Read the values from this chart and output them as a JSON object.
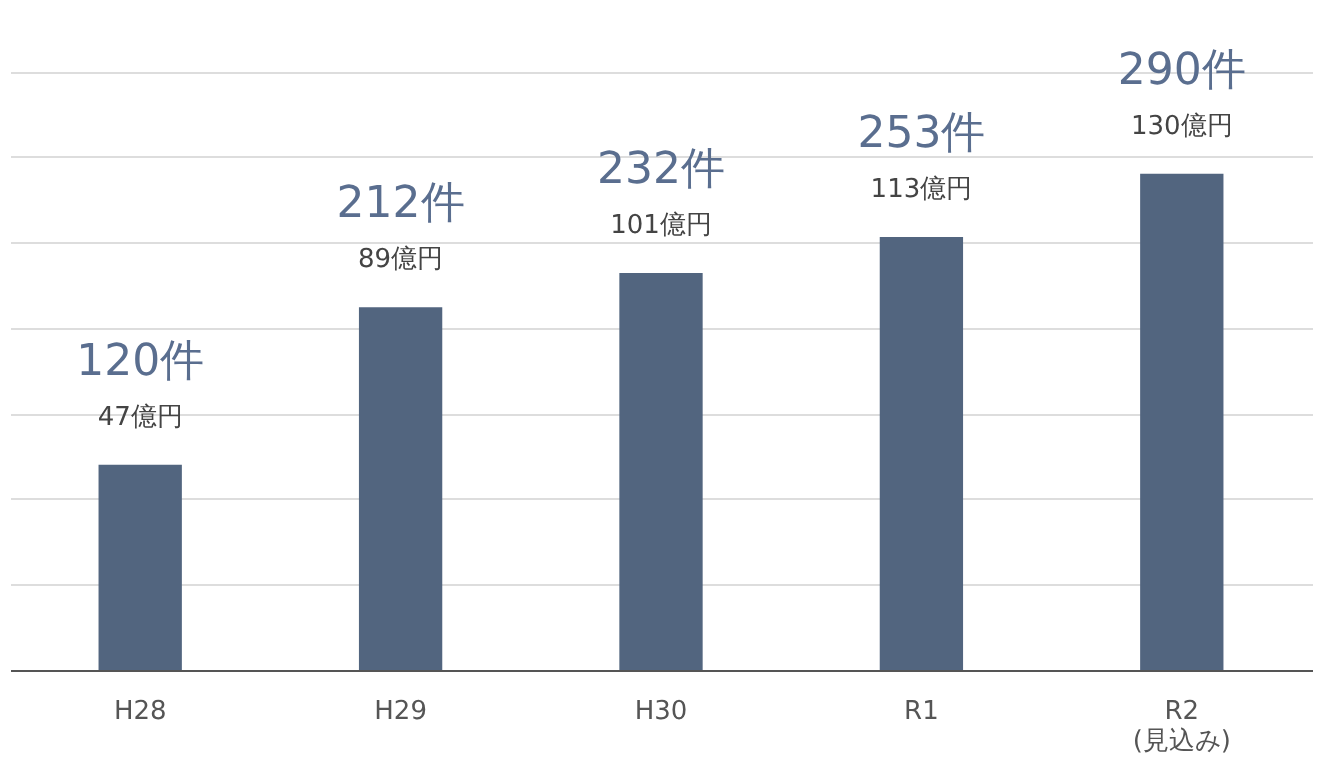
{
  "chart_data": {
    "type": "bar",
    "grid": "y",
    "tick_labels": "x",
    "categories": [
      "H28",
      "H29",
      "H30",
      "R1",
      "R2\n(見込み)"
    ],
    "values": [
      120,
      212,
      232,
      253,
      290
    ],
    "color": "#52657f",
    "value_labels": [
      "120件",
      "212件",
      "232件",
      "253件",
      "290件"
    ],
    "annotations": [
      "47億円",
      "89億円",
      "101億円",
      "113億円",
      "130億円"
    ]
  }
}
